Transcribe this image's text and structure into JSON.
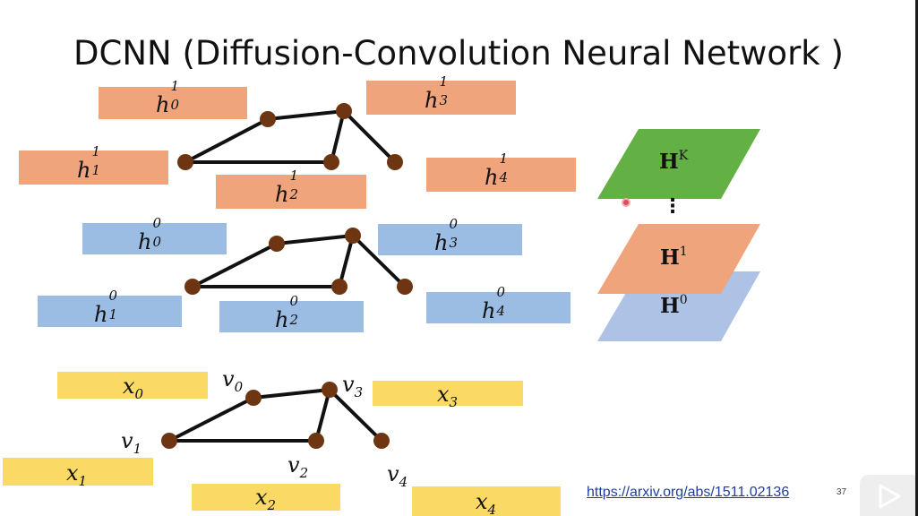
{
  "title": "DCNN (Diffusion-Convolution Neural Network )",
  "colors": {
    "h1_box": "#f0a47c",
    "h0_box": "#9bbde3",
    "x_box": "#fad964",
    "node": "#6e3512",
    "layer_K": "#63b044",
    "layer_1": "#f0a47c",
    "layer_0": "#aec2e6",
    "link": "#1f3f9e"
  },
  "graph_h1": {
    "labels": [
      {
        "base": "h",
        "sup": "1",
        "sub": "0"
      },
      {
        "base": "h",
        "sup": "1",
        "sub": "1"
      },
      {
        "base": "h",
        "sup": "1",
        "sub": "2"
      },
      {
        "base": "h",
        "sup": "1",
        "sub": "3"
      },
      {
        "base": "h",
        "sup": "1",
        "sub": "4"
      }
    ]
  },
  "graph_h0": {
    "labels": [
      {
        "base": "h",
        "sup": "0",
        "sub": "0"
      },
      {
        "base": "h",
        "sup": "0",
        "sub": "1"
      },
      {
        "base": "h",
        "sup": "0",
        "sub": "2"
      },
      {
        "base": "h",
        "sup": "0",
        "sub": "3"
      },
      {
        "base": "h",
        "sup": "0",
        "sub": "4"
      }
    ]
  },
  "graph_x": {
    "labels": [
      {
        "base": "x",
        "sub": "0"
      },
      {
        "base": "x",
        "sub": "1"
      },
      {
        "base": "x",
        "sub": "2"
      },
      {
        "base": "x",
        "sub": "3"
      },
      {
        "base": "x",
        "sub": "4"
      }
    ],
    "vertices": [
      {
        "base": "v",
        "sub": "0"
      },
      {
        "base": "v",
        "sub": "1"
      },
      {
        "base": "v",
        "sub": "2"
      },
      {
        "base": "v",
        "sub": "3"
      },
      {
        "base": "v",
        "sub": "4"
      }
    ]
  },
  "layers": [
    {
      "base": "H",
      "sup": "K"
    },
    {
      "base": "H",
      "sup": "1"
    },
    {
      "base": "H",
      "sup": "0"
    }
  ],
  "layer_ellipsis": "⋮",
  "link": "https://arxiv.org/abs/1511.02136",
  "page_number": "37"
}
